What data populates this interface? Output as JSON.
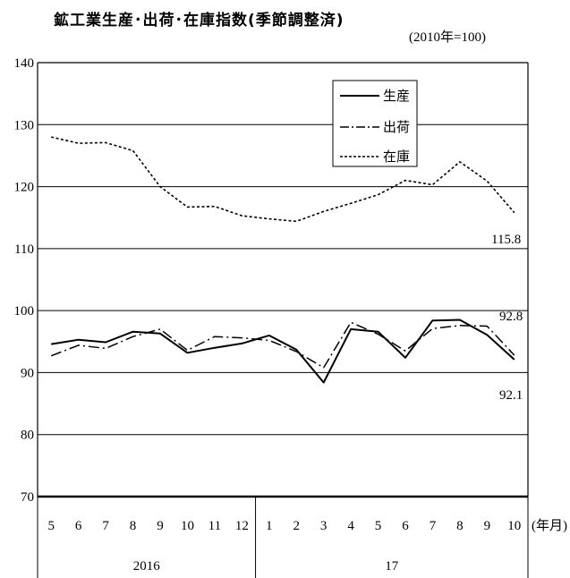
{
  "chart_data": {
    "type": "line",
    "title": "鉱工業生産･出荷･在庫指数(季節調整済)",
    "subtitle": "(2010年=100)",
    "ylim": [
      70,
      140
    ],
    "yticks": [
      "70",
      "80",
      "90",
      "100",
      "110",
      "120",
      "130",
      "140"
    ],
    "x_labels": [
      "5",
      "6",
      "7",
      "8",
      "9",
      "10",
      "11",
      "12",
      "1",
      "2",
      "3",
      "4",
      "5",
      "6",
      "7",
      "8",
      "9",
      "10"
    ],
    "x_unit": "(年月)",
    "year_groups": [
      {
        "label": "2016",
        "start": 0,
        "end": 7
      },
      {
        "label": "17",
        "start": 8,
        "end": 17
      }
    ],
    "grid": true,
    "legend_position": "top-right",
    "series": [
      {
        "name": "生産",
        "style": "solid",
        "values": [
          94.6,
          95.3,
          94.9,
          96.6,
          96.3,
          93.2,
          94.0,
          94.7,
          96.0,
          93.7,
          88.4,
          97.0,
          96.6,
          92.4,
          98.4,
          98.5,
          96.1,
          92.1
        ]
      },
      {
        "name": "出荷",
        "style": "dashdot",
        "values": [
          92.7,
          94.4,
          93.9,
          95.8,
          97.0,
          93.6,
          95.8,
          95.6,
          95.2,
          93.4,
          90.8,
          98.1,
          96.2,
          93.5,
          97.1,
          97.6,
          97.5,
          92.8
        ]
      },
      {
        "name": "在庫",
        "style": "dotted",
        "values": [
          128.0,
          127.0,
          127.1,
          125.8,
          120.0,
          116.7,
          116.8,
          115.3,
          114.8,
          114.4,
          116.0,
          117.3,
          118.7,
          121.0,
          120.3,
          124.0,
          120.9,
          115.8
        ]
      }
    ],
    "annotations": [
      "115.8",
      "92.8",
      "92.1"
    ]
  }
}
